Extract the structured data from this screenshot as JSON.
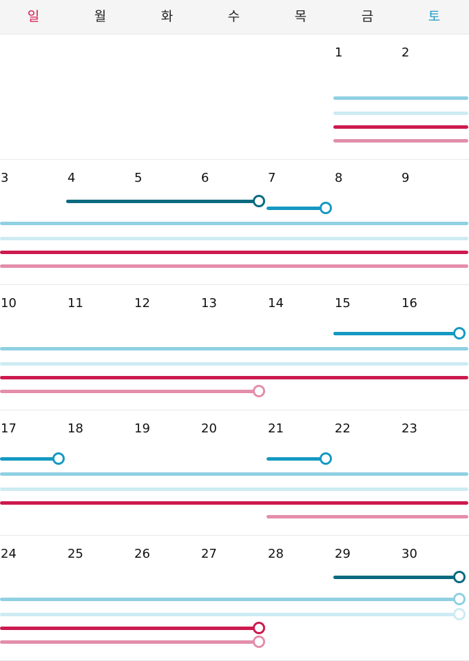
{
  "weekdays": [
    {
      "label": "일",
      "color": "#d6194f"
    },
    {
      "label": "월",
      "color": "#222222"
    },
    {
      "label": "화",
      "color": "#222222"
    },
    {
      "label": "수",
      "color": "#222222"
    },
    {
      "label": "목",
      "color": "#222222"
    },
    {
      "label": "금",
      "color": "#222222"
    },
    {
      "label": "토",
      "color": "#1a9cc5"
    }
  ],
  "colors": {
    "teal_dark": "#0a6a80",
    "blue": "#1599c2",
    "sky": "#8fd0e2",
    "sky_pale": "#cdebf3",
    "crimson": "#cc1a4e",
    "pink": "#e38eab"
  },
  "weeks": [
    {
      "days": [
        "",
        "",
        "",
        "",
        "",
        "1",
        "2"
      ],
      "events": [
        {
          "color": "sky",
          "start_col": 5,
          "end_col": 6,
          "lane": 2
        },
        {
          "color": "sky_pale",
          "start_col": 5,
          "end_col": 6,
          "lane": 3
        },
        {
          "color": "crimson",
          "start_col": 5,
          "end_col": 6,
          "lane": 4
        },
        {
          "color": "pink",
          "start_col": 5,
          "end_col": 6,
          "lane": 5
        }
      ]
    },
    {
      "days": [
        "3",
        "4",
        "5",
        "6",
        "7",
        "8",
        "9"
      ],
      "events": [
        {
          "color": "teal_dark",
          "start_col": 1,
          "end_col": 3,
          "lane": 0,
          "end_marker": true
        },
        {
          "color": "blue",
          "start_col": 4,
          "end_col": 4,
          "lane": 1,
          "end_marker": true
        },
        {
          "color": "sky",
          "start_col": 0,
          "end_col": 6,
          "lane": 2
        },
        {
          "color": "sky_pale",
          "start_col": 0,
          "end_col": 6,
          "lane": 3
        },
        {
          "color": "crimson",
          "start_col": 0,
          "end_col": 6,
          "lane": 4
        },
        {
          "color": "pink",
          "start_col": 0,
          "end_col": 6,
          "lane": 5
        }
      ]
    },
    {
      "days": [
        "10",
        "11",
        "12",
        "13",
        "14",
        "15",
        "16"
      ],
      "events": [
        {
          "color": "blue",
          "start_col": 5,
          "end_col": 6,
          "lane": 1,
          "end_marker": true
        },
        {
          "color": "sky",
          "start_col": 0,
          "end_col": 6,
          "lane": 2
        },
        {
          "color": "sky_pale",
          "start_col": 0,
          "end_col": 6,
          "lane": 3
        },
        {
          "color": "crimson",
          "start_col": 0,
          "end_col": 6,
          "lane": 4
        },
        {
          "color": "pink",
          "start_col": 0,
          "end_col": 3,
          "lane": 5,
          "end_marker": true
        }
      ]
    },
    {
      "days": [
        "17",
        "18",
        "19",
        "20",
        "21",
        "22",
        "23"
      ],
      "events": [
        {
          "color": "blue",
          "start_col": 0,
          "end_col": 0,
          "lane": 1,
          "end_marker": true
        },
        {
          "color": "blue",
          "start_col": 4,
          "end_col": 4,
          "lane": 1,
          "end_marker": true
        },
        {
          "color": "sky",
          "start_col": 0,
          "end_col": 6,
          "lane": 2
        },
        {
          "color": "sky_pale",
          "start_col": 0,
          "end_col": 6,
          "lane": 3
        },
        {
          "color": "crimson",
          "start_col": 0,
          "end_col": 6,
          "lane": 4
        },
        {
          "color": "pink",
          "start_col": 4,
          "end_col": 6,
          "lane": 5
        }
      ]
    },
    {
      "days": [
        "24",
        "25",
        "26",
        "27",
        "28",
        "29",
        "30"
      ],
      "events": [
        {
          "color": "teal_dark",
          "start_col": 5,
          "end_col": 6,
          "lane": 0,
          "end_marker": true
        },
        {
          "color": "sky",
          "start_col": 0,
          "end_col": 6,
          "lane": 2,
          "end_marker": true
        },
        {
          "color": "sky_pale",
          "start_col": 0,
          "end_col": 6,
          "lane": 3,
          "end_marker": true
        },
        {
          "color": "crimson",
          "start_col": 0,
          "end_col": 3,
          "lane": 4,
          "end_marker": true
        },
        {
          "color": "pink",
          "start_col": 0,
          "end_col": 3,
          "lane": 5,
          "end_marker": true
        }
      ]
    }
  ]
}
